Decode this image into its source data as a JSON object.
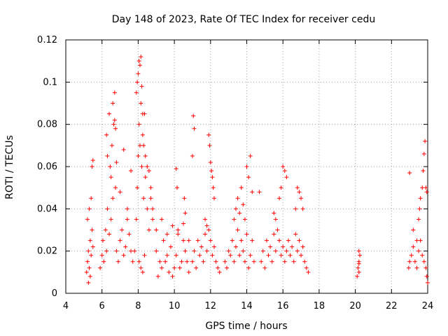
{
  "chart_data": {
    "type": "scatter",
    "title": "Day 148 of 2023, Rate Of TEC Index for receiver cedu",
    "xlabel": "GPS time / hours",
    "ylabel": "ROTI / TECUs",
    "xlim": [
      4,
      24
    ],
    "ylim": [
      0,
      0.12
    ],
    "xticks": [
      4,
      6,
      8,
      10,
      12,
      14,
      16,
      18,
      20,
      22,
      24
    ],
    "yticks": [
      0,
      0.02,
      0.04,
      0.06,
      0.08,
      0.1,
      0.12
    ],
    "xtick_labels": [
      "4",
      "6",
      "8",
      "10",
      "12",
      "14",
      "16",
      "18",
      "20",
      "22",
      "24"
    ],
    "ytick_labels": [
      "0",
      "0.02",
      "0.04",
      "0.06",
      "0.08",
      "0.1",
      "0.12"
    ],
    "grid": true,
    "marker": "+",
    "color": "#ff0000",
    "series": [
      {
        "name": "ROTI",
        "x": [
          5.15,
          5.2,
          5.25,
          5.3,
          5.35,
          5.4,
          5.45,
          5.5,
          5.2,
          5.3,
          5.4,
          5.45,
          5.5,
          5.35,
          5.25,
          5.9,
          6.0,
          6.05,
          6.1,
          6.2,
          6.25,
          6.3,
          6.4,
          6.45,
          6.5,
          6.55,
          6.6,
          6.65,
          6.7,
          6.75,
          6.8,
          6.9,
          7.0,
          7.1,
          7.2,
          7.3,
          7.4,
          7.5,
          7.6,
          7.7,
          6.25,
          6.3,
          6.4,
          6.5,
          6.6,
          6.7,
          6.75,
          6.8,
          7.0,
          7.2,
          7.4,
          7.6,
          7.8,
          7.9,
          7.95,
          8.0,
          8.05,
          8.1,
          8.15,
          8.2,
          8.25,
          8.3,
          8.35,
          8.4,
          8.5,
          8.6,
          8.7,
          8.8,
          7.9,
          7.95,
          8.0,
          8.05,
          8.1,
          8.15,
          8.2,
          8.25,
          8.3,
          8.4,
          8.5,
          8.6,
          8.7,
          8.8,
          8.05,
          8.15,
          8.25,
          8.35,
          9.0,
          9.2,
          9.4,
          9.6,
          9.8,
          10.0,
          10.2,
          10.4,
          10.6,
          10.8,
          9.1,
          9.3,
          9.5,
          9.7,
          9.9,
          10.1,
          10.3,
          10.5,
          10.7,
          9.0,
          9.3,
          9.6,
          9.9,
          10.2,
          10.5,
          10.8,
          10.1,
          10.15,
          10.55,
          10.6,
          11.0,
          11.1,
          11.2,
          11.3,
          11.4,
          11.5,
          11.6,
          11.7,
          11.8,
          11.9,
          12.0,
          12.1,
          12.2,
          12.3,
          12.4,
          12.5,
          11.05,
          11.1,
          11.0,
          11.9,
          11.95,
          12.0,
          12.05,
          12.1,
          12.15,
          12.2,
          11.7,
          11.8,
          12.8,
          12.9,
          13.0,
          13.1,
          13.2,
          13.3,
          13.4,
          13.5,
          13.6,
          13.7,
          13.8,
          13.9,
          14.0,
          14.1,
          14.2,
          14.3,
          14.4,
          13.3,
          13.4,
          13.5,
          13.6,
          13.7,
          13.8,
          13.9,
          14.0,
          14.1,
          14.2,
          14.3,
          14.8,
          14.9,
          15.0,
          15.1,
          15.2,
          15.3,
          15.4,
          15.5,
          15.6,
          15.7,
          15.8,
          15.9,
          16.0,
          16.1,
          16.2,
          16.3,
          16.4,
          16.5,
          16.6,
          16.7,
          16.8,
          16.9,
          17.0,
          17.1,
          17.2,
          17.3,
          17.4,
          15.8,
          15.9,
          16.0,
          16.1,
          16.2,
          16.7,
          16.8,
          16.9,
          17.0,
          17.1,
          14.7,
          15.5,
          15.6,
          20.1,
          20.15,
          20.2,
          20.25,
          20.2,
          20.2,
          20.2,
          22.95,
          23.0,
          23.1,
          23.2,
          23.3,
          23.4,
          23.5,
          23.6,
          23.7,
          23.8,
          23.9,
          23.95,
          24.0,
          23.5,
          23.55,
          23.6,
          23.7,
          23.75,
          23.8,
          23.85,
          23.9,
          23.95,
          23.0,
          23.2,
          23.4
        ],
        "y": [
          0.01,
          0.015,
          0.02,
          0.012,
          0.025,
          0.018,
          0.03,
          0.022,
          0.035,
          0.04,
          0.045,
          0.06,
          0.063,
          0.008,
          0.005,
          0.012,
          0.018,
          0.025,
          0.015,
          0.03,
          0.02,
          0.04,
          0.028,
          0.06,
          0.035,
          0.07,
          0.045,
          0.08,
          0.095,
          0.05,
          0.02,
          0.015,
          0.025,
          0.03,
          0.018,
          0.022,
          0.035,
          0.028,
          0.02,
          0.015,
          0.075,
          0.065,
          0.085,
          0.055,
          0.09,
          0.082,
          0.078,
          0.062,
          0.048,
          0.068,
          0.04,
          0.058,
          0.02,
          0.035,
          0.05,
          0.065,
          0.08,
          0.07,
          0.09,
          0.06,
          0.075,
          0.045,
          0.085,
          0.055,
          0.04,
          0.03,
          0.05,
          0.035,
          0.095,
          0.1,
          0.104,
          0.11,
          0.108,
          0.112,
          0.098,
          0.085,
          0.07,
          0.065,
          0.06,
          0.058,
          0.045,
          0.04,
          0.015,
          0.012,
          0.01,
          0.018,
          0.02,
          0.015,
          0.025,
          0.018,
          0.022,
          0.012,
          0.028,
          0.015,
          0.02,
          0.01,
          0.008,
          0.012,
          0.015,
          0.01,
          0.008,
          0.018,
          0.012,
          0.025,
          0.015,
          0.03,
          0.035,
          0.028,
          0.032,
          0.03,
          0.033,
          0.025,
          0.059,
          0.05,
          0.045,
          0.038,
          0.015,
          0.02,
          0.012,
          0.025,
          0.018,
          0.022,
          0.015,
          0.028,
          0.02,
          0.03,
          0.025,
          0.018,
          0.022,
          0.015,
          0.012,
          0.01,
          0.084,
          0.078,
          0.065,
          0.075,
          0.07,
          0.062,
          0.058,
          0.055,
          0.05,
          0.045,
          0.035,
          0.032,
          0.015,
          0.012,
          0.02,
          0.018,
          0.025,
          0.015,
          0.022,
          0.03,
          0.018,
          0.025,
          0.02,
          0.015,
          0.028,
          0.012,
          0.018,
          0.025,
          0.015,
          0.035,
          0.04,
          0.045,
          0.038,
          0.05,
          0.042,
          0.035,
          0.06,
          0.055,
          0.065,
          0.048,
          0.015,
          0.02,
          0.012,
          0.025,
          0.018,
          0.022,
          0.015,
          0.028,
          0.02,
          0.03,
          0.025,
          0.018,
          0.022,
          0.015,
          0.02,
          0.025,
          0.018,
          0.022,
          0.015,
          0.028,
          0.02,
          0.025,
          0.018,
          0.022,
          0.015,
          0.012,
          0.01,
          0.045,
          0.05,
          0.06,
          0.058,
          0.055,
          0.04,
          0.05,
          0.048,
          0.045,
          0.04,
          0.048,
          0.038,
          0.035,
          0.008,
          0.012,
          0.015,
          0.018,
          0.02,
          0.01,
          0.014,
          0.012,
          0.015,
          0.018,
          0.022,
          0.015,
          0.012,
          0.02,
          0.025,
          0.018,
          0.015,
          0.012,
          0.008,
          0.005,
          0.035,
          0.04,
          0.045,
          0.05,
          0.058,
          0.066,
          0.072,
          0.05,
          0.048,
          0.057,
          0.03,
          0.025
        ]
      }
    ]
  }
}
